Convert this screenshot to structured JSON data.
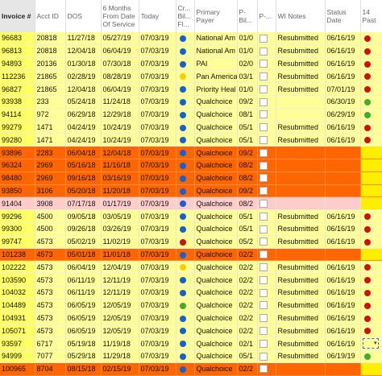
{
  "headers": [
    "Invoice #",
    "Acct ID",
    "DOS",
    "6 Months From Date Of Service",
    "Today",
    "Cr... Bil... Fl...",
    "Primary Payer",
    "P- Bil... ",
    "P-... ",
    "WI Notes",
    "Status Date",
    "14 Past"
  ],
  "colors": {
    "blue": "#1560d4",
    "yellow": "#ffcc00",
    "red": "#cc1111",
    "green": "#44aa33"
  },
  "rows": [
    {
      "style": "yellow",
      "inv": "96683",
      "acct": "20818",
      "dos": "11/27/18",
      "six": "05/27/19",
      "today": "07/03/19",
      "dot": "blue",
      "payer": "National Am",
      "pb": "01/0",
      "check": true,
      "note": "Resubmitted",
      "status": "06/16/19",
      "past": "red"
    },
    {
      "style": "yellow",
      "inv": "96813",
      "acct": "20818",
      "dos": "12/04/18",
      "six": "06/04/19",
      "today": "07/03/19",
      "dot": "blue",
      "payer": "National Am",
      "pb": "01/0",
      "check": true,
      "note": "Resubmitted",
      "status": "06/16/19",
      "past": "red"
    },
    {
      "style": "yellow",
      "inv": "94893",
      "acct": "20136",
      "dos": "01/30/18",
      "six": "07/30/18",
      "today": "07/03/19",
      "dot": "blue",
      "payer": "PAI",
      "pb": "02/0",
      "check": true,
      "note": "Resubmitted",
      "status": "06/16/19",
      "past": "red"
    },
    {
      "style": "yellow",
      "inv": "112236",
      "acct": "21865",
      "dos": "02/28/19",
      "six": "08/28/19",
      "today": "07/03/19",
      "dot": "yellow",
      "payer": "Pan America",
      "pb": "03/1",
      "check": true,
      "note": "Resubmitted",
      "status": "06/16/19",
      "past": "red"
    },
    {
      "style": "yellow",
      "inv": "96827",
      "acct": "21865",
      "dos": "12/04/18",
      "six": "06/04/19",
      "today": "07/03/19",
      "dot": "blue",
      "payer": "Priority Heal",
      "pb": "01/0",
      "check": true,
      "note": "Resubmitted",
      "status": "07/01/19",
      "past": "red"
    },
    {
      "style": "yellow",
      "inv": "93938",
      "acct": "233",
      "dos": "05/24/18",
      "six": "11/24/18",
      "today": "07/03/19",
      "dot": "blue",
      "payer": "Qualchoice",
      "pb": "09/2",
      "check": true,
      "note": "",
      "status": "06/30/19",
      "past": "green"
    },
    {
      "style": "yellow",
      "inv": "94114",
      "acct": "972",
      "dos": "06/29/18",
      "six": "12/29/18",
      "today": "07/03/19",
      "dot": "blue",
      "payer": "Qualchoice",
      "pb": "08/1",
      "check": true,
      "note": "",
      "status": "06/29/19",
      "past": "green"
    },
    {
      "style": "yellow",
      "inv": "99279",
      "acct": "1471",
      "dos": "04/24/19",
      "six": "10/24/19",
      "today": "07/03/19",
      "dot": "blue",
      "payer": "Qualchoice",
      "pb": "05/1",
      "check": true,
      "note": "Resubmitted",
      "status": "06/16/19",
      "past": "red"
    },
    {
      "style": "yellow",
      "inv": "99280",
      "acct": "1471",
      "dos": "04/24/19",
      "six": "10/24/19",
      "today": "07/03/19",
      "dot": "blue",
      "payer": "Qualchoice",
      "pb": "05/1",
      "check": true,
      "note": "Resubmitted",
      "status": "06/16/19",
      "past": "red"
    },
    {
      "style": "orange",
      "inv": "93896",
      "acct": "2283",
      "dos": "06/04/18",
      "six": "12/04/18",
      "today": "07/03/19",
      "dot": "blue",
      "payer": "Qualchoice",
      "pb": "09/2",
      "check": true,
      "note": "",
      "status": "",
      "past": ""
    },
    {
      "style": "orange",
      "inv": "96324",
      "acct": "2969",
      "dos": "05/16/18",
      "six": "11/16/18",
      "today": "07/03/19",
      "dot": "blue",
      "payer": "Qualchoice",
      "pb": "08/2",
      "check": true,
      "note": "",
      "status": "",
      "past": ""
    },
    {
      "style": "orange",
      "inv": "98480",
      "acct": "2969",
      "dos": "09/16/18",
      "six": "03/16/19",
      "today": "07/03/19",
      "dot": "blue",
      "payer": "Qualchoice",
      "pb": "08/2",
      "check": true,
      "note": "",
      "status": "",
      "past": ""
    },
    {
      "style": "orange",
      "inv": "93850",
      "acct": "3106",
      "dos": "05/20/18",
      "six": "11/20/18",
      "today": "07/03/19",
      "dot": "blue",
      "payer": "Qualchoice",
      "pb": "09/2",
      "check": true,
      "note": "",
      "status": "",
      "past": ""
    },
    {
      "style": "pink",
      "inv": "91404",
      "acct": "3908",
      "dos": "07/17/18",
      "six": "01/17/19",
      "today": "07/03/19",
      "dot": "blue",
      "payer": "Qualchoice",
      "pb": "08/2",
      "check": true,
      "note": "",
      "status": "",
      "past": ""
    },
    {
      "style": "yellow",
      "inv": "99296",
      "acct": "4500",
      "dos": "09/05/18",
      "six": "03/05/19",
      "today": "07/03/19",
      "dot": "blue",
      "payer": "Qualchoice",
      "pb": "05/1",
      "check": true,
      "note": "Resubmitted",
      "status": "06/16/19",
      "past": "red"
    },
    {
      "style": "yellow",
      "inv": "99300",
      "acct": "4500",
      "dos": "09/26/18",
      "six": "03/26/19",
      "today": "07/03/19",
      "dot": "blue",
      "payer": "Qualchoice",
      "pb": "05/1",
      "check": true,
      "note": "Resubmitted",
      "status": "06/16/19",
      "past": "red"
    },
    {
      "style": "yellow",
      "inv": "99747",
      "acct": "4573",
      "dos": "05/02/19",
      "six": "11/02/19",
      "today": "07/03/19",
      "dot": "red",
      "payer": "Qualchoice",
      "pb": "05/2",
      "check": true,
      "note": "Resubmitted",
      "status": "06/16/19",
      "past": "red"
    },
    {
      "style": "orange",
      "inv": "101238",
      "acct": "4573",
      "dos": "05/01/18",
      "six": "11/01/18",
      "today": "07/03/19",
      "dot": "blue",
      "payer": "Qualchoice",
      "pb": "02/2",
      "check": true,
      "note": "",
      "status": "",
      "past": ""
    },
    {
      "style": "yellow",
      "inv": "102222",
      "acct": "4573",
      "dos": "06/04/19",
      "six": "12/04/19",
      "today": "07/03/19",
      "dot": "yellow",
      "payer": "Qualchoice",
      "pb": "02/2",
      "check": true,
      "note": "Resubmitted",
      "status": "06/16/19",
      "past": "red"
    },
    {
      "style": "yellow",
      "inv": "103590",
      "acct": "4573",
      "dos": "06/11/19",
      "six": "12/11/19",
      "today": "07/03/19",
      "dot": "blue",
      "payer": "Qualchoice",
      "pb": "02/2",
      "check": true,
      "note": "Resubmitted",
      "status": "06/16/19",
      "past": "red"
    },
    {
      "style": "yellow",
      "inv": "104032",
      "acct": "4573",
      "dos": "06/11/19",
      "six": "12/11/19",
      "today": "07/03/19",
      "dot": "blue",
      "payer": "Qualchoice",
      "pb": "02/2",
      "check": true,
      "note": "Resubmitted",
      "status": "06/16/19",
      "past": "red"
    },
    {
      "style": "yellow",
      "inv": "104489",
      "acct": "4573",
      "dos": "06/05/19",
      "six": "12/05/19",
      "today": "07/03/19",
      "dot": "green",
      "payer": "Qualchoice",
      "pb": "02/2",
      "check": true,
      "note": "Resubmitted",
      "status": "06/16/19",
      "past": "red"
    },
    {
      "style": "yellow",
      "inv": "104931",
      "acct": "4573",
      "dos": "06/05/19",
      "six": "12/05/19",
      "today": "07/03/19",
      "dot": "blue",
      "payer": "Qualchoice",
      "pb": "02/2",
      "check": true,
      "note": "Resubmitted",
      "status": "06/16/19",
      "past": "red"
    },
    {
      "style": "yellow",
      "inv": "105071",
      "acct": "4573",
      "dos": "06/05/19",
      "six": "12/05/19",
      "today": "07/03/19",
      "dot": "blue",
      "payer": "Qualchoice",
      "pb": "02/2",
      "check": true,
      "note": "Resubmitted",
      "status": "06/16/19",
      "past": "red"
    },
    {
      "style": "yellow",
      "inv": "93597",
      "acct": "6717",
      "dos": "05/19/18",
      "six": "11/19/18",
      "today": "07/03/19",
      "dot": "blue",
      "payer": "Qualchoice",
      "pb": "02/1",
      "check": true,
      "note": "Resubmitted",
      "status": "06/16/19",
      "past": "dropdown"
    },
    {
      "style": "yellow",
      "inv": "94999",
      "acct": "7077",
      "dos": "05/29/18",
      "six": "11/29/18",
      "today": "07/03/19",
      "dot": "blue",
      "payer": "Qualchoice",
      "pb": "05/1",
      "check": true,
      "note": "Resubmitted",
      "status": "06/19/19",
      "past": "green"
    },
    {
      "style": "orange",
      "inv": "100965",
      "acct": "8704",
      "dos": "08/15/18",
      "six": "02/15/19",
      "today": "07/03/19",
      "dot": "blue",
      "payer": "Qualchoice",
      "pb": "02/2",
      "check": true,
      "note": "",
      "status": "",
      "past": ""
    }
  ]
}
